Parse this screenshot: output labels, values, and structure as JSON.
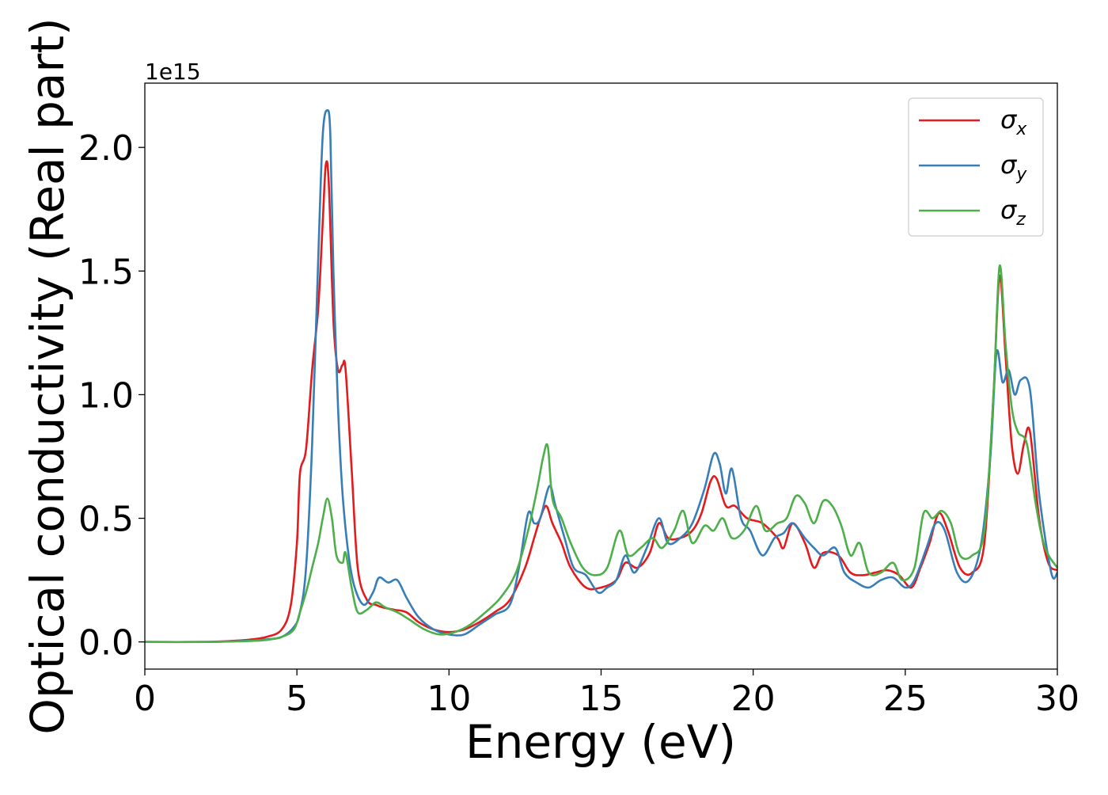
{
  "chart_data": {
    "type": "line",
    "title": "",
    "xlabel": "Energy (eV)",
    "ylabel": "Optical conductivity (Real part)",
    "y_multiplier_label": "1e15",
    "xlim": [
      0,
      30
    ],
    "ylim": [
      -0.11,
      2.26
    ],
    "x_ticks": [
      0,
      5,
      10,
      15,
      20,
      25,
      30
    ],
    "x_tick_labels": [
      "0",
      "5",
      "10",
      "15",
      "20",
      "25",
      "30"
    ],
    "y_ticks": [
      0.0,
      0.5,
      1.0,
      1.5,
      2.0
    ],
    "y_tick_labels": [
      "0.0",
      "0.5",
      "1.0",
      "1.5",
      "2.0"
    ],
    "grid": false,
    "legend_position": "top-right",
    "series": [
      {
        "name": "σx",
        "legend_base": "σ",
        "legend_sub": "x",
        "color": "#e41a1c",
        "points": [
          [
            0,
            0.0
          ],
          [
            2,
            0.0
          ],
          [
            3,
            0.005
          ],
          [
            3.5,
            0.01
          ],
          [
            4,
            0.02
          ],
          [
            4.5,
            0.05
          ],
          [
            4.8,
            0.15
          ],
          [
            5.0,
            0.4
          ],
          [
            5.1,
            0.68
          ],
          [
            5.3,
            0.78
          ],
          [
            5.5,
            1.1
          ],
          [
            5.7,
            1.35
          ],
          [
            5.85,
            1.7
          ],
          [
            5.95,
            1.93
          ],
          [
            6.05,
            1.85
          ],
          [
            6.2,
            1.3
          ],
          [
            6.35,
            1.1
          ],
          [
            6.5,
            1.12
          ],
          [
            6.6,
            1.1
          ],
          [
            6.8,
            0.7
          ],
          [
            7.0,
            0.3
          ],
          [
            7.3,
            0.17
          ],
          [
            7.6,
            0.15
          ],
          [
            7.8,
            0.14
          ],
          [
            8.2,
            0.13
          ],
          [
            8.6,
            0.12
          ],
          [
            9.0,
            0.08
          ],
          [
            9.5,
            0.05
          ],
          [
            10.0,
            0.04
          ],
          [
            10.5,
            0.05
          ],
          [
            11,
            0.08
          ],
          [
            11.5,
            0.12
          ],
          [
            12,
            0.17
          ],
          [
            12.5,
            0.3
          ],
          [
            12.8,
            0.42
          ],
          [
            13.0,
            0.5
          ],
          [
            13.2,
            0.55
          ],
          [
            13.4,
            0.48
          ],
          [
            13.7,
            0.4
          ],
          [
            14.0,
            0.3
          ],
          [
            14.5,
            0.22
          ],
          [
            15.0,
            0.22
          ],
          [
            15.5,
            0.25
          ],
          [
            15.8,
            0.32
          ],
          [
            16.2,
            0.3
          ],
          [
            16.6,
            0.36
          ],
          [
            16.9,
            0.48
          ],
          [
            17.2,
            0.42
          ],
          [
            17.6,
            0.42
          ],
          [
            18.0,
            0.45
          ],
          [
            18.3,
            0.52
          ],
          [
            18.6,
            0.65
          ],
          [
            18.8,
            0.66
          ],
          [
            19.1,
            0.55
          ],
          [
            19.4,
            0.55
          ],
          [
            19.8,
            0.5
          ],
          [
            20.3,
            0.48
          ],
          [
            20.8,
            0.42
          ],
          [
            21.0,
            0.38
          ],
          [
            21.3,
            0.48
          ],
          [
            21.7,
            0.4
          ],
          [
            22.0,
            0.3
          ],
          [
            22.3,
            0.36
          ],
          [
            22.8,
            0.35
          ],
          [
            23.2,
            0.28
          ],
          [
            23.6,
            0.27
          ],
          [
            24.0,
            0.28
          ],
          [
            24.4,
            0.29
          ],
          [
            24.8,
            0.27
          ],
          [
            25.2,
            0.22
          ],
          [
            25.5,
            0.3
          ],
          [
            25.8,
            0.4
          ],
          [
            26.1,
            0.52
          ],
          [
            26.4,
            0.45
          ],
          [
            26.8,
            0.3
          ],
          [
            27.2,
            0.28
          ],
          [
            27.6,
            0.4
          ],
          [
            27.9,
            1.0
          ],
          [
            28.1,
            1.48
          ],
          [
            28.3,
            1.15
          ],
          [
            28.5,
            0.8
          ],
          [
            28.7,
            0.68
          ],
          [
            28.9,
            0.8
          ],
          [
            29.1,
            0.85
          ],
          [
            29.4,
            0.5
          ],
          [
            29.7,
            0.32
          ],
          [
            30.0,
            0.29
          ]
        ]
      },
      {
        "name": "σy",
        "legend_base": "σ",
        "legend_sub": "y",
        "color": "#377eb8",
        "points": [
          [
            0,
            0.0
          ],
          [
            2,
            0.0
          ],
          [
            3,
            0.003
          ],
          [
            3.5,
            0.005
          ],
          [
            4,
            0.01
          ],
          [
            4.5,
            0.02
          ],
          [
            4.9,
            0.06
          ],
          [
            5.1,
            0.12
          ],
          [
            5.3,
            0.3
          ],
          [
            5.5,
            0.8
          ],
          [
            5.7,
            1.55
          ],
          [
            5.85,
            2.05
          ],
          [
            6.0,
            2.15
          ],
          [
            6.1,
            2.05
          ],
          [
            6.2,
            1.5
          ],
          [
            6.35,
            0.95
          ],
          [
            6.5,
            0.6
          ],
          [
            6.7,
            0.35
          ],
          [
            6.9,
            0.22
          ],
          [
            7.2,
            0.15
          ],
          [
            7.5,
            0.2
          ],
          [
            7.7,
            0.26
          ],
          [
            8.0,
            0.24
          ],
          [
            8.3,
            0.25
          ],
          [
            8.6,
            0.18
          ],
          [
            9.0,
            0.1
          ],
          [
            9.5,
            0.05
          ],
          [
            10.0,
            0.03
          ],
          [
            10.5,
            0.03
          ],
          [
            11,
            0.07
          ],
          [
            11.5,
            0.11
          ],
          [
            12,
            0.15
          ],
          [
            12.3,
            0.3
          ],
          [
            12.6,
            0.52
          ],
          [
            12.8,
            0.48
          ],
          [
            13.0,
            0.5
          ],
          [
            13.3,
            0.63
          ],
          [
            13.5,
            0.55
          ],
          [
            13.8,
            0.42
          ],
          [
            14.1,
            0.3
          ],
          [
            14.5,
            0.27
          ],
          [
            14.9,
            0.2
          ],
          [
            15.2,
            0.22
          ],
          [
            15.5,
            0.25
          ],
          [
            15.8,
            0.35
          ],
          [
            16.1,
            0.28
          ],
          [
            16.5,
            0.38
          ],
          [
            16.9,
            0.5
          ],
          [
            17.2,
            0.4
          ],
          [
            17.6,
            0.42
          ],
          [
            18.0,
            0.48
          ],
          [
            18.4,
            0.62
          ],
          [
            18.7,
            0.76
          ],
          [
            18.9,
            0.72
          ],
          [
            19.1,
            0.6
          ],
          [
            19.3,
            0.7
          ],
          [
            19.6,
            0.5
          ],
          [
            19.9,
            0.45
          ],
          [
            20.3,
            0.35
          ],
          [
            20.7,
            0.42
          ],
          [
            21.0,
            0.44
          ],
          [
            21.3,
            0.48
          ],
          [
            21.7,
            0.42
          ],
          [
            22.0,
            0.38
          ],
          [
            22.3,
            0.35
          ],
          [
            22.7,
            0.38
          ],
          [
            23.0,
            0.28
          ],
          [
            23.4,
            0.24
          ],
          [
            23.8,
            0.22
          ],
          [
            24.2,
            0.25
          ],
          [
            24.6,
            0.26
          ],
          [
            25.0,
            0.22
          ],
          [
            25.3,
            0.25
          ],
          [
            25.7,
            0.38
          ],
          [
            26.0,
            0.48
          ],
          [
            26.3,
            0.45
          ],
          [
            26.7,
            0.28
          ],
          [
            27.1,
            0.25
          ],
          [
            27.5,
            0.4
          ],
          [
            27.8,
            0.75
          ],
          [
            28.0,
            1.17
          ],
          [
            28.2,
            1.05
          ],
          [
            28.4,
            1.1
          ],
          [
            28.6,
            1.0
          ],
          [
            28.8,
            1.06
          ],
          [
            29.1,
            1.02
          ],
          [
            29.4,
            0.6
          ],
          [
            29.8,
            0.28
          ],
          [
            30.0,
            0.28
          ]
        ]
      },
      {
        "name": "σz",
        "legend_base": "σ",
        "legend_sub": "z",
        "color": "#4daf4a",
        "points": [
          [
            0,
            0.0
          ],
          [
            2,
            0.0
          ],
          [
            3,
            0.002
          ],
          [
            3.5,
            0.004
          ],
          [
            4,
            0.008
          ],
          [
            4.5,
            0.02
          ],
          [
            4.9,
            0.05
          ],
          [
            5.1,
            0.12
          ],
          [
            5.3,
            0.2
          ],
          [
            5.5,
            0.3
          ],
          [
            5.7,
            0.4
          ],
          [
            5.85,
            0.5
          ],
          [
            6.0,
            0.58
          ],
          [
            6.15,
            0.5
          ],
          [
            6.3,
            0.35
          ],
          [
            6.5,
            0.32
          ],
          [
            6.6,
            0.36
          ],
          [
            6.8,
            0.22
          ],
          [
            7.0,
            0.12
          ],
          [
            7.3,
            0.13
          ],
          [
            7.6,
            0.16
          ],
          [
            7.9,
            0.14
          ],
          [
            8.3,
            0.12
          ],
          [
            8.7,
            0.09
          ],
          [
            9.2,
            0.05
          ],
          [
            9.7,
            0.03
          ],
          [
            10.2,
            0.04
          ],
          [
            10.7,
            0.07
          ],
          [
            11.2,
            0.12
          ],
          [
            11.7,
            0.18
          ],
          [
            12.2,
            0.28
          ],
          [
            12.6,
            0.45
          ],
          [
            12.9,
            0.62
          ],
          [
            13.1,
            0.75
          ],
          [
            13.25,
            0.79
          ],
          [
            13.4,
            0.58
          ],
          [
            13.7,
            0.5
          ],
          [
            14.0,
            0.4
          ],
          [
            14.4,
            0.3
          ],
          [
            14.8,
            0.27
          ],
          [
            15.2,
            0.3
          ],
          [
            15.6,
            0.45
          ],
          [
            15.9,
            0.35
          ],
          [
            16.3,
            0.38
          ],
          [
            16.7,
            0.42
          ],
          [
            17.0,
            0.38
          ],
          [
            17.4,
            0.45
          ],
          [
            17.7,
            0.53
          ],
          [
            18.0,
            0.4
          ],
          [
            18.4,
            0.47
          ],
          [
            18.7,
            0.45
          ],
          [
            19.0,
            0.5
          ],
          [
            19.3,
            0.42
          ],
          [
            19.7,
            0.45
          ],
          [
            20.1,
            0.55
          ],
          [
            20.4,
            0.45
          ],
          [
            20.8,
            0.48
          ],
          [
            21.1,
            0.5
          ],
          [
            21.4,
            0.59
          ],
          [
            21.7,
            0.56
          ],
          [
            22.0,
            0.48
          ],
          [
            22.3,
            0.57
          ],
          [
            22.6,
            0.55
          ],
          [
            22.9,
            0.47
          ],
          [
            23.2,
            0.35
          ],
          [
            23.5,
            0.4
          ],
          [
            23.8,
            0.28
          ],
          [
            24.2,
            0.28
          ],
          [
            24.6,
            0.32
          ],
          [
            24.9,
            0.25
          ],
          [
            25.3,
            0.3
          ],
          [
            25.6,
            0.52
          ],
          [
            25.9,
            0.5
          ],
          [
            26.2,
            0.53
          ],
          [
            26.5,
            0.48
          ],
          [
            26.8,
            0.35
          ],
          [
            27.2,
            0.35
          ],
          [
            27.6,
            0.45
          ],
          [
            27.9,
            1.0
          ],
          [
            28.1,
            1.52
          ],
          [
            28.3,
            1.2
          ],
          [
            28.5,
            0.95
          ],
          [
            28.7,
            0.85
          ],
          [
            29.0,
            0.8
          ],
          [
            29.3,
            0.55
          ],
          [
            29.6,
            0.38
          ],
          [
            30.0,
            0.3
          ]
        ]
      }
    ]
  }
}
